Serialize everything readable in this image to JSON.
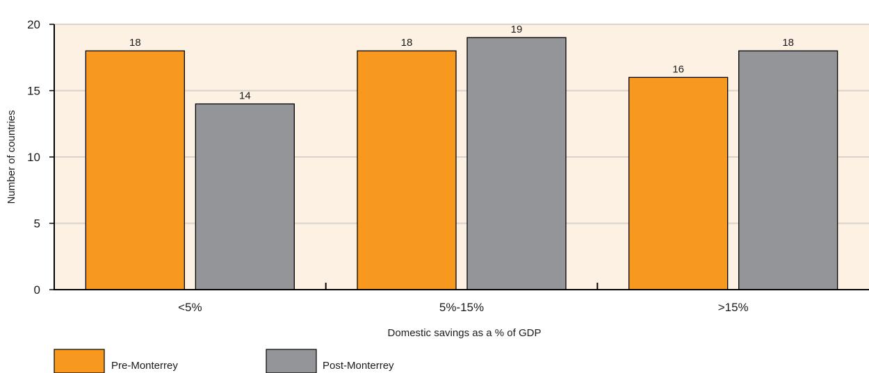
{
  "chart_data": {
    "type": "bar",
    "categories": [
      "<5%",
      "5%-15%",
      ">15%"
    ],
    "series": [
      {
        "name": "Pre-Monterrey",
        "values": [
          18,
          18,
          16
        ],
        "color": "#f7981f"
      },
      {
        "name": "Post-Monterrey",
        "values": [
          14,
          19,
          18
        ],
        "color": "#939598"
      }
    ],
    "title": "",
    "xlabel": "Domestic savings as a % of GDP",
    "ylabel": "Number of countries",
    "ylim": [
      0,
      20
    ],
    "yticks": [
      0,
      5,
      10,
      15,
      20
    ],
    "grid": true,
    "legend": "bottom-left",
    "plot_background": "#fdf1e3",
    "gridline_color": "#d9d3cb"
  }
}
